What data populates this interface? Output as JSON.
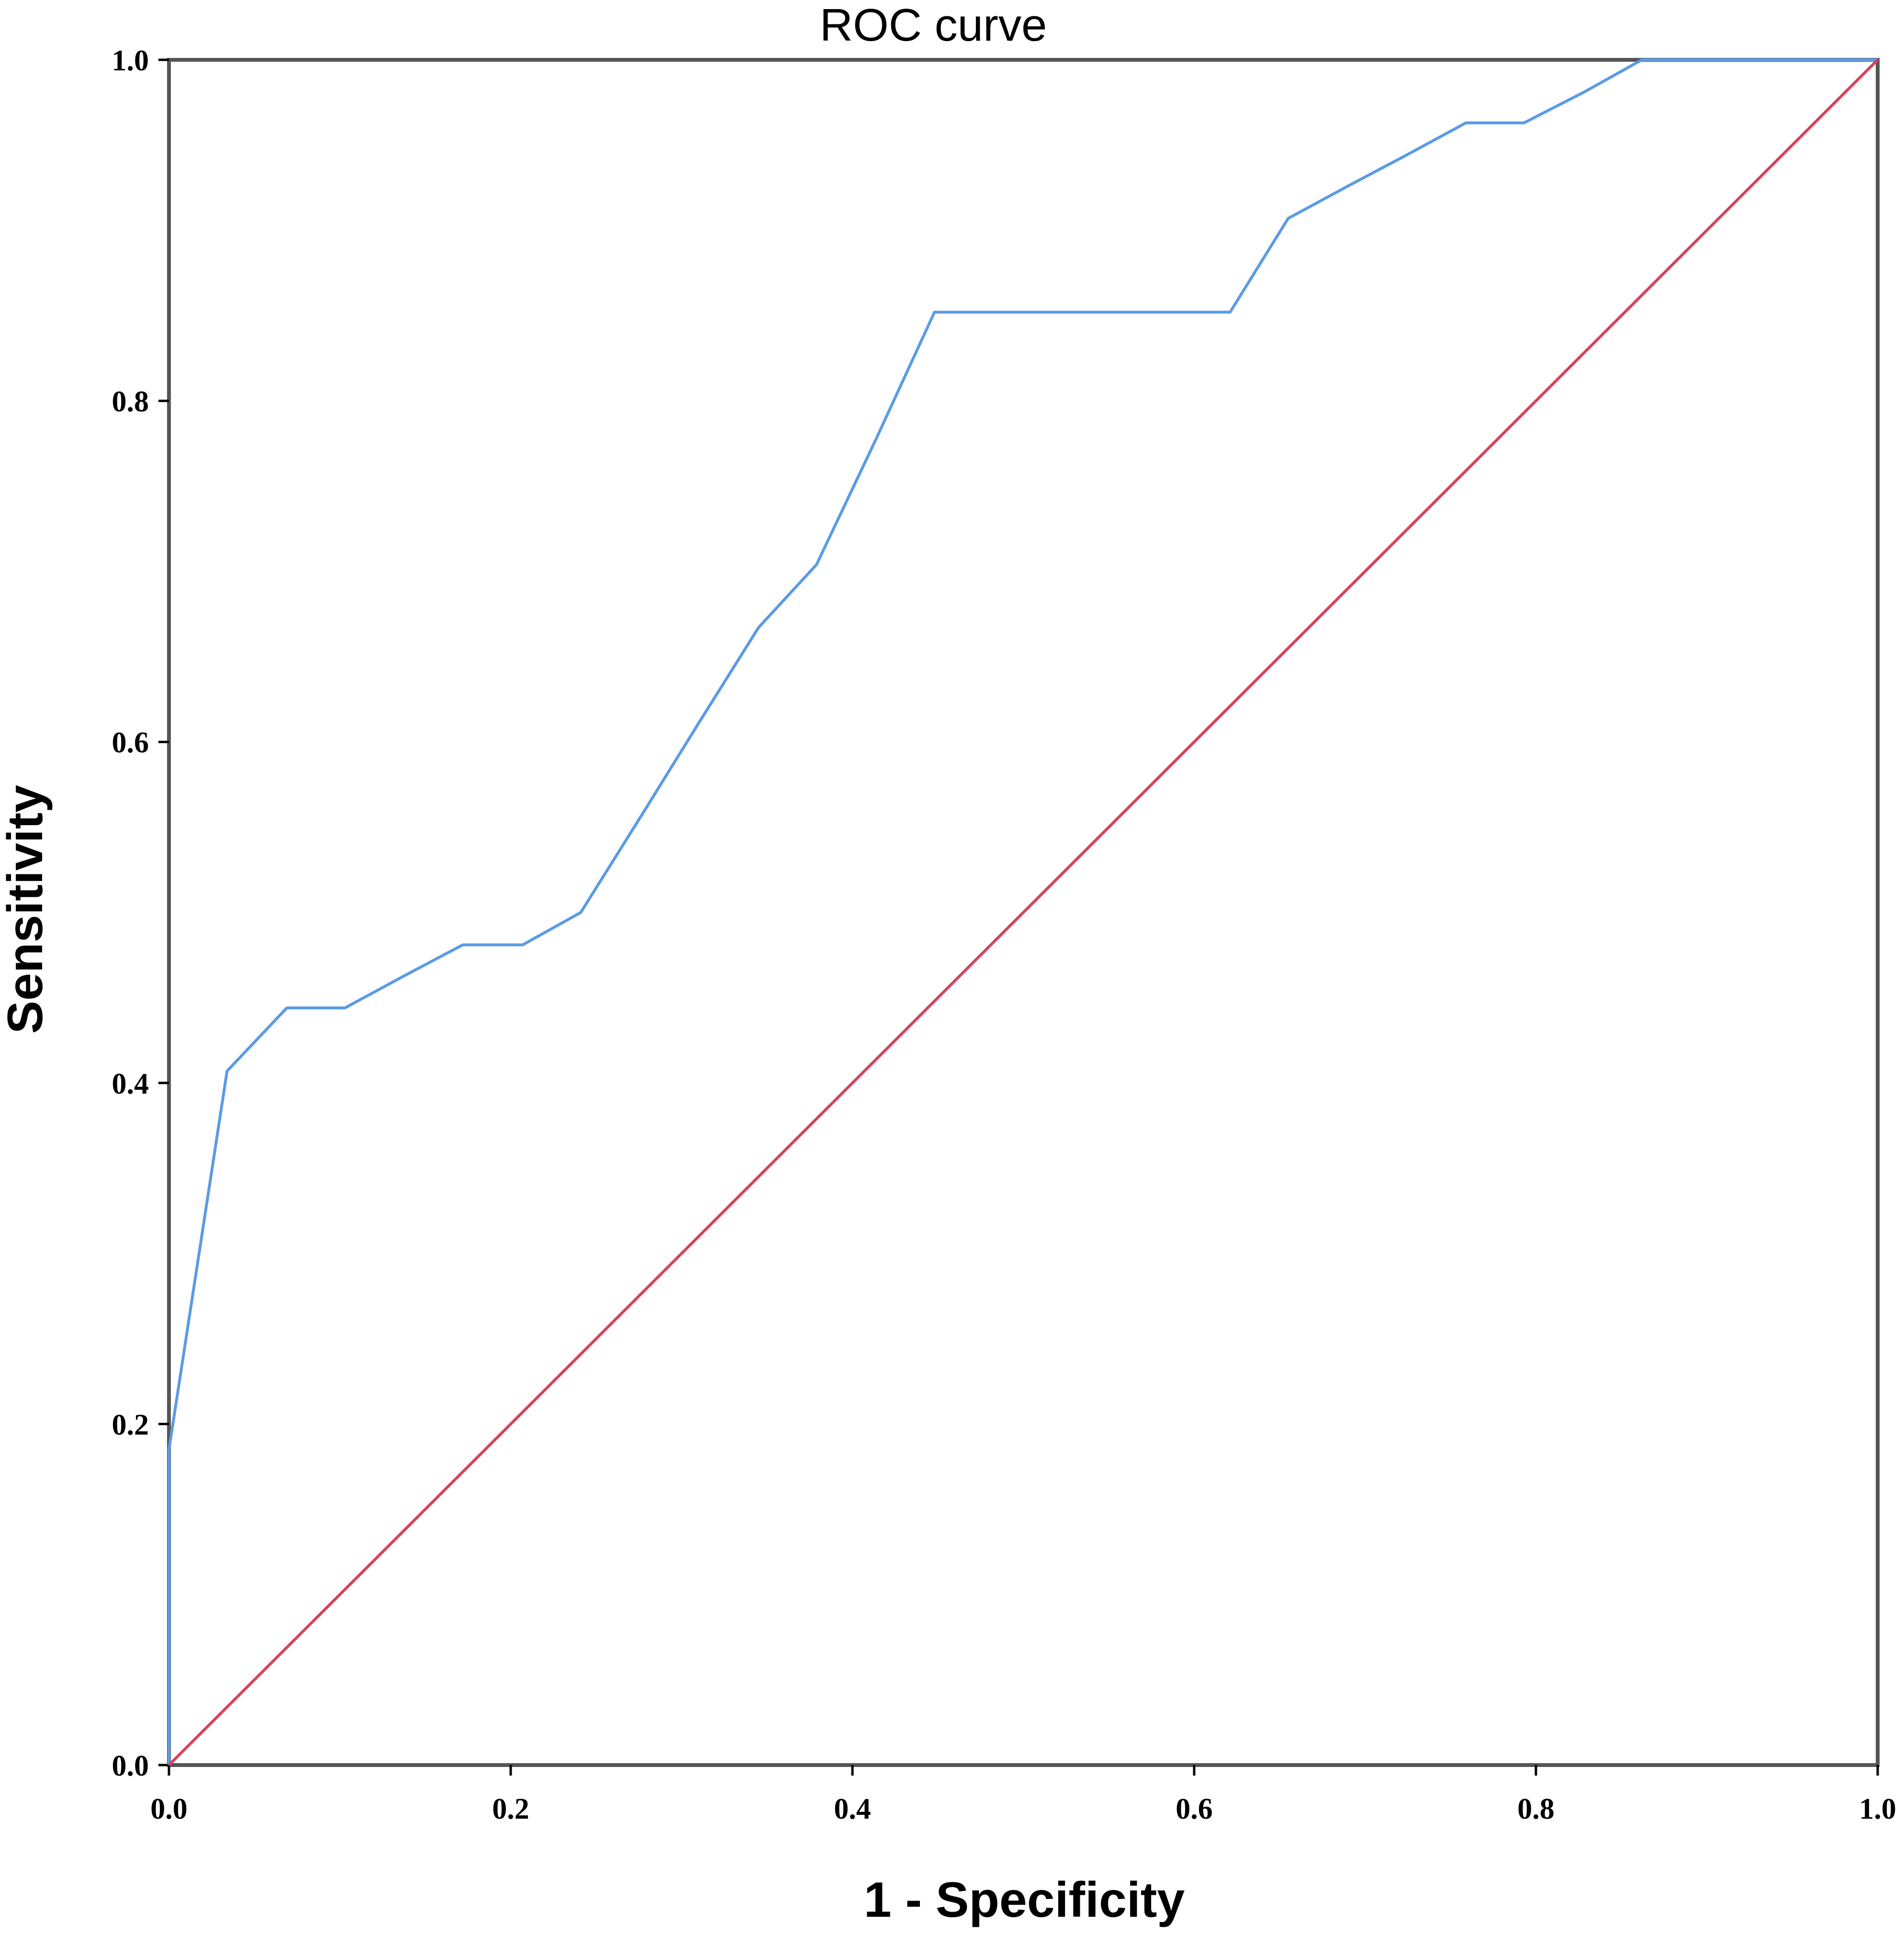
{
  "chart_data": {
    "type": "line",
    "title": "ROC curve",
    "xlabel": "1 - Specificity",
    "ylabel": "Sensitivity",
    "xlim": [
      0,
      1
    ],
    "ylim": [
      0,
      1
    ],
    "x_ticks": [
      "0.0",
      "0.2",
      "0.4",
      "0.6",
      "0.8",
      "1.0"
    ],
    "y_ticks": [
      "0.0",
      "0.2",
      "0.4",
      "0.6",
      "0.8",
      "1.0"
    ],
    "grid": false,
    "series": [
      {
        "color": "#5a9be6",
        "x": [
          0.0,
          0.0,
          0.034,
          0.069,
          0.103,
          0.138,
          0.172,
          0.207,
          0.241,
          0.276,
          0.31,
          0.345,
          0.379,
          0.414,
          0.448,
          0.517,
          0.586,
          0.621,
          0.655,
          0.69,
          0.724,
          0.759,
          0.793,
          0.828,
          0.862,
          1.0
        ],
        "y": [
          0.0,
          0.185,
          0.407,
          0.444,
          0.444,
          0.463,
          0.481,
          0.481,
          0.5,
          0.556,
          0.611,
          0.667,
          0.704,
          0.778,
          0.852,
          0.852,
          0.852,
          0.852,
          0.907,
          0.926,
          0.944,
          0.963,
          0.963,
          0.981,
          1.0,
          1.0
        ]
      },
      {
        "color": "#d6435c",
        "x": [
          0.0,
          1.0
        ],
        "y": [
          0.0,
          1.0
        ]
      }
    ]
  }
}
